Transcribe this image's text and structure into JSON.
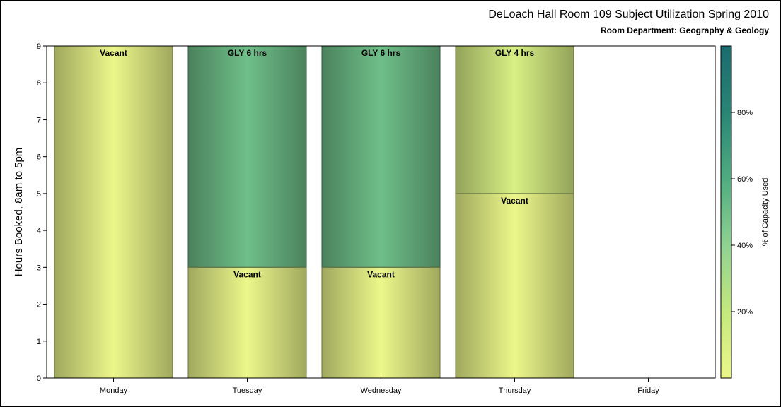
{
  "title": "DeLoach Hall Room 109 Subject Utilization Spring 2010",
  "subtitle": "Room Department:  Geography & Geology",
  "chart_data": {
    "type": "bar",
    "stacked": true,
    "categories": [
      "Monday",
      "Tuesday",
      "Wednesday",
      "Thursday",
      "Friday"
    ],
    "ylabel": "Hours Booked, 8am to 5pm",
    "xlabel": "",
    "ylim": [
      0,
      9
    ],
    "yticks": [
      0,
      1,
      2,
      3,
      4,
      5,
      6,
      7,
      8,
      9
    ],
    "grid": false,
    "segments": [
      {
        "category": "Monday",
        "bottom": 0,
        "top": 9,
        "label": "Vacant",
        "capacity_pct": 0
      },
      {
        "category": "Tuesday",
        "bottom": 0,
        "top": 3,
        "label": "Vacant",
        "capacity_pct": 0
      },
      {
        "category": "Tuesday",
        "bottom": 3,
        "top": 9,
        "label": "GLY 6 hrs",
        "capacity_pct": 50
      },
      {
        "category": "Wednesday",
        "bottom": 0,
        "top": 3,
        "label": "Vacant",
        "capacity_pct": 0
      },
      {
        "category": "Wednesday",
        "bottom": 3,
        "top": 9,
        "label": "GLY 6 hrs",
        "capacity_pct": 50
      },
      {
        "category": "Thursday",
        "bottom": 0,
        "top": 5,
        "label": "Vacant",
        "capacity_pct": 0
      },
      {
        "category": "Thursday",
        "bottom": 5,
        "top": 9,
        "label": "GLY 4 hrs",
        "capacity_pct": 10
      }
    ],
    "colorbar": {
      "label": "% of Capacity Used",
      "range": [
        0,
        100
      ],
      "ticks": [
        20,
        40,
        60,
        80
      ],
      "tick_labels": [
        "20%",
        "40%",
        "60%",
        "80%"
      ],
      "colors": [
        "#ecf78a",
        "#c3e87e",
        "#8fd292",
        "#4fac80",
        "#2a8576",
        "#1c6a6e"
      ]
    },
    "empty_color": "#ecf78a"
  }
}
